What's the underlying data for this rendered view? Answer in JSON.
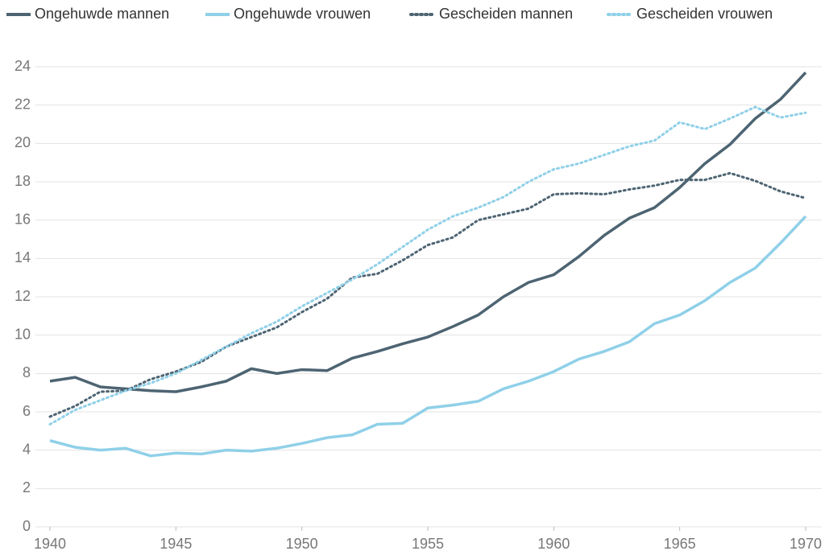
{
  "chart_data": {
    "type": "line",
    "x": [
      1940,
      1941,
      1942,
      1943,
      1944,
      1945,
      1946,
      1947,
      1948,
      1949,
      1950,
      1951,
      1952,
      1953,
      1954,
      1955,
      1956,
      1957,
      1958,
      1959,
      1960,
      1961,
      1962,
      1963,
      1964,
      1965,
      1966,
      1967,
      1968,
      1969,
      1970
    ],
    "series": [
      {
        "name": "Ongehuwde mannen",
        "color": "#4d6472",
        "style": "solid",
        "values": [
          7.6,
          7.8,
          7.3,
          7.2,
          7.1,
          7.05,
          7.3,
          7.6,
          8.25,
          8.0,
          8.2,
          8.15,
          8.8,
          9.15,
          9.55,
          9.9,
          10.45,
          11.05,
          12.0,
          12.75,
          13.15,
          14.1,
          15.2,
          16.1,
          16.65,
          17.7,
          18.95,
          19.95,
          21.3,
          22.3,
          23.7
        ]
      },
      {
        "name": "Ongehuwde vrouwen",
        "color": "#8fd0e8",
        "style": "solid",
        "values": [
          4.5,
          4.15,
          4.0,
          4.1,
          3.7,
          3.85,
          3.8,
          4.0,
          3.95,
          4.1,
          4.35,
          4.65,
          4.8,
          5.35,
          5.4,
          6.2,
          6.35,
          6.55,
          7.2,
          7.6,
          8.1,
          8.75,
          9.15,
          9.65,
          10.6,
          11.05,
          11.8,
          12.75,
          13.5,
          14.8,
          16.2
        ]
      },
      {
        "name": "Gescheiden mannen",
        "color": "#4d6472",
        "style": "dotted",
        "values": [
          5.75,
          6.3,
          7.05,
          7.1,
          7.7,
          8.1,
          8.6,
          9.4,
          9.9,
          10.4,
          11.2,
          11.9,
          13.0,
          13.2,
          13.9,
          14.7,
          15.1,
          16.0,
          16.3,
          16.6,
          17.35,
          17.4,
          17.35,
          17.6,
          17.8,
          18.1,
          18.1,
          18.45,
          18.05,
          17.5,
          17.15
        ]
      },
      {
        "name": "Gescheiden vrouwen",
        "color": "#8fd0e8",
        "style": "dotted",
        "values": [
          5.35,
          6.1,
          6.6,
          7.1,
          7.5,
          8.0,
          8.7,
          9.4,
          10.1,
          10.7,
          11.5,
          12.2,
          12.9,
          13.7,
          14.6,
          15.5,
          16.2,
          16.65,
          17.2,
          18.0,
          18.65,
          18.95,
          19.4,
          19.85,
          20.15,
          21.1,
          20.75,
          21.3,
          21.9,
          21.35,
          21.6
        ]
      }
    ],
    "xlim": [
      1940,
      1970
    ],
    "xticks": [
      1940,
      1945,
      1950,
      1955,
      1960,
      1965,
      1970
    ],
    "ylim": [
      0,
      24
    ],
    "yticks": [
      0,
      2,
      4,
      6,
      8,
      10,
      12,
      14,
      16,
      18,
      20,
      22,
      24
    ],
    "grid": true,
    "legend": "top-left"
  }
}
